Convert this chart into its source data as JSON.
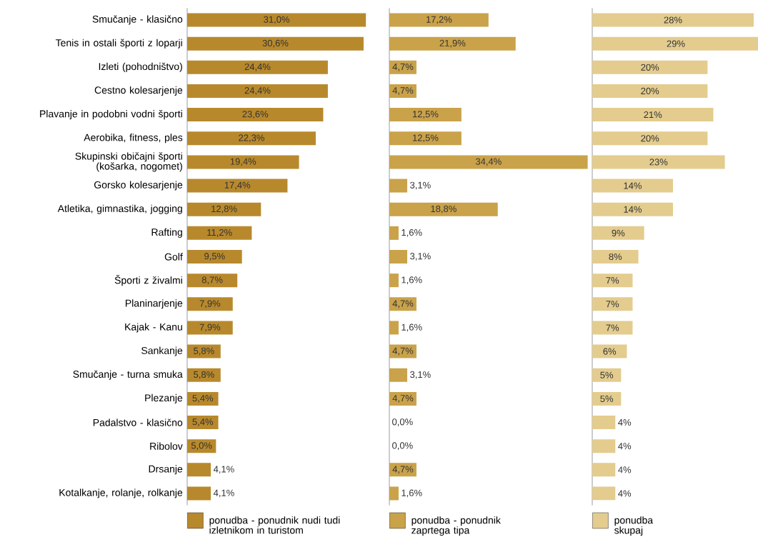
{
  "chart_data": [
    {
      "type": "bar",
      "orientation": "horizontal",
      "legend": "bottom",
      "categories": [
        "Smučanje - klasično",
        "Tenis in ostali športi z loparji",
        "Izleti (pohodništvo)",
        "Cestno kolesarjenje",
        "Plavanje in podobni vodni športi",
        "Aerobika, fitness, ples",
        "Skupinski običajni športi (košarka, nogomet)",
        "Gorsko kolesarjenje",
        "Atletika, gimnastika, jogging",
        "Rafting",
        "Golf",
        "Športi z živalmi",
        "Planinarjenje",
        "Kajak - Kanu",
        "Sankanje",
        "Smučanje - turna smuka",
        "Plezanje",
        "Padalstvo - klasično",
        "Ribolov",
        "Drsanje",
        "Kotalkanje, rolanje, rolkanje"
      ],
      "series": [
        {
          "name": "ponudba - ponudnik nudi tudi izletnikom in turistom",
          "color": "#b8892c",
          "values": [
            31.0,
            30.6,
            24.4,
            24.4,
            23.6,
            22.3,
            19.4,
            17.4,
            12.8,
            11.2,
            9.5,
            8.7,
            7.9,
            7.9,
            5.8,
            5.8,
            5.4,
            5.4,
            5.0,
            4.1,
            4.1
          ],
          "value_labels": [
            "31,0%",
            "30,6%",
            "24,4%",
            "24,4%",
            "23,6%",
            "22,3%",
            "19,4%",
            "17,4%",
            "12,8%",
            "11,2%",
            "9,5%",
            "8,7%",
            "7,9%",
            "7,9%",
            "5,8%",
            "5,8%",
            "5,4%",
            "5,4%",
            "5,0%",
            "4,1%",
            "4,1%"
          ]
        }
      ]
    },
    {
      "type": "bar",
      "orientation": "horizontal",
      "legend": "bottom",
      "series": [
        {
          "name": "ponudba - ponudnik zaprtega tipa",
          "color": "#c9a24a",
          "values": [
            17.2,
            21.9,
            4.7,
            4.7,
            12.5,
            12.5,
            34.4,
            3.1,
            18.8,
            1.6,
            3.1,
            1.6,
            4.7,
            1.6,
            4.7,
            3.1,
            4.7,
            0.0,
            0.0,
            4.7,
            1.6
          ],
          "value_labels": [
            "17,2%",
            "21,9%",
            "4,7%",
            "4,7%",
            "12,5%",
            "12,5%",
            "34,4%",
            "3,1%",
            "18,8%",
            "1,6%",
            "3,1%",
            "1,6%",
            "4,7%",
            "1,6%",
            "4,7%",
            "3,1%",
            "4,7%",
            "0,0%",
            "0,0%",
            "4,7%",
            "1,6%"
          ]
        }
      ]
    },
    {
      "type": "bar",
      "orientation": "horizontal",
      "legend": "bottom",
      "series": [
        {
          "name": "ponudba skupaj",
          "color": "#e3cc8e",
          "values": [
            28,
            29,
            20,
            20,
            21,
            20,
            23,
            14,
            14,
            9,
            8,
            7,
            7,
            7,
            6,
            5,
            5,
            4,
            4,
            4,
            4
          ],
          "value_labels": [
            "28%",
            "29%",
            "20%",
            "20%",
            "21%",
            "20%",
            "23%",
            "14%",
            "14%",
            "9%",
            "8%",
            "7%",
            "7%",
            "7%",
            "6%",
            "5%",
            "5%",
            "4%",
            "4%",
            "4%",
            "4%"
          ]
        }
      ]
    }
  ]
}
